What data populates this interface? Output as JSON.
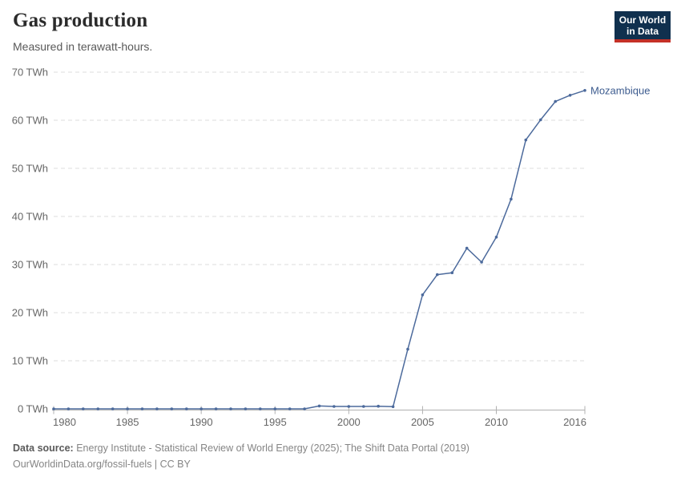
{
  "header": {
    "title": "Gas production",
    "subtitle": "Measured in terawatt-hours.",
    "logo": {
      "line1": "Our World",
      "line2": "in Data",
      "bg": "#10304e",
      "accent": "#c43127"
    }
  },
  "chart_data": {
    "type": "line",
    "title": "Gas production",
    "unit": "TWh",
    "x": [
      1980,
      1981,
      1982,
      1983,
      1984,
      1985,
      1986,
      1987,
      1988,
      1989,
      1990,
      1991,
      1992,
      1993,
      1994,
      1995,
      1996,
      1997,
      1998,
      1999,
      2000,
      2001,
      2002,
      2003,
      2004,
      2005,
      2006,
      2007,
      2008,
      2009,
      2010,
      2011,
      2012,
      2013,
      2014,
      2015,
      2016
    ],
    "series": [
      {
        "name": "Mozambique",
        "color": "#4C6A9C",
        "label_color": "#3d5c8f",
        "values": [
          0,
          0,
          0,
          0,
          0,
          0,
          0,
          0,
          0,
          0,
          0,
          0,
          0,
          0,
          0,
          0,
          0,
          0,
          0.6,
          0.5,
          0.5,
          0.5,
          0.55,
          0.45,
          12.4,
          23.7,
          27.9,
          28.3,
          33.4,
          30.5,
          35.7,
          43.6,
          55.9,
          60.1,
          63.9,
          65.2,
          66.2
        ]
      }
    ],
    "xlim": [
      1980,
      2016
    ],
    "ylim": [
      0,
      70
    ],
    "xticks": [
      1980,
      1985,
      1990,
      1995,
      2000,
      2005,
      2010,
      2016
    ],
    "yticks": [
      0,
      10,
      20,
      30,
      40,
      50,
      60,
      70
    ],
    "ytick_suffix": " TWh",
    "grid": "horizontal-dashed",
    "legend_position": "end-of-line",
    "colors": {
      "grid": "#dddddd",
      "axis": "#b0b0b0",
      "tick_text": "#666666"
    }
  },
  "footer": {
    "source_label": "Data source:",
    "source_text": " Energy Institute - Statistical Review of World Energy (2025); The Shift Data Portal (2019)",
    "link": "OurWorldinData.org/fossil-fuels",
    "license": " | CC BY"
  }
}
